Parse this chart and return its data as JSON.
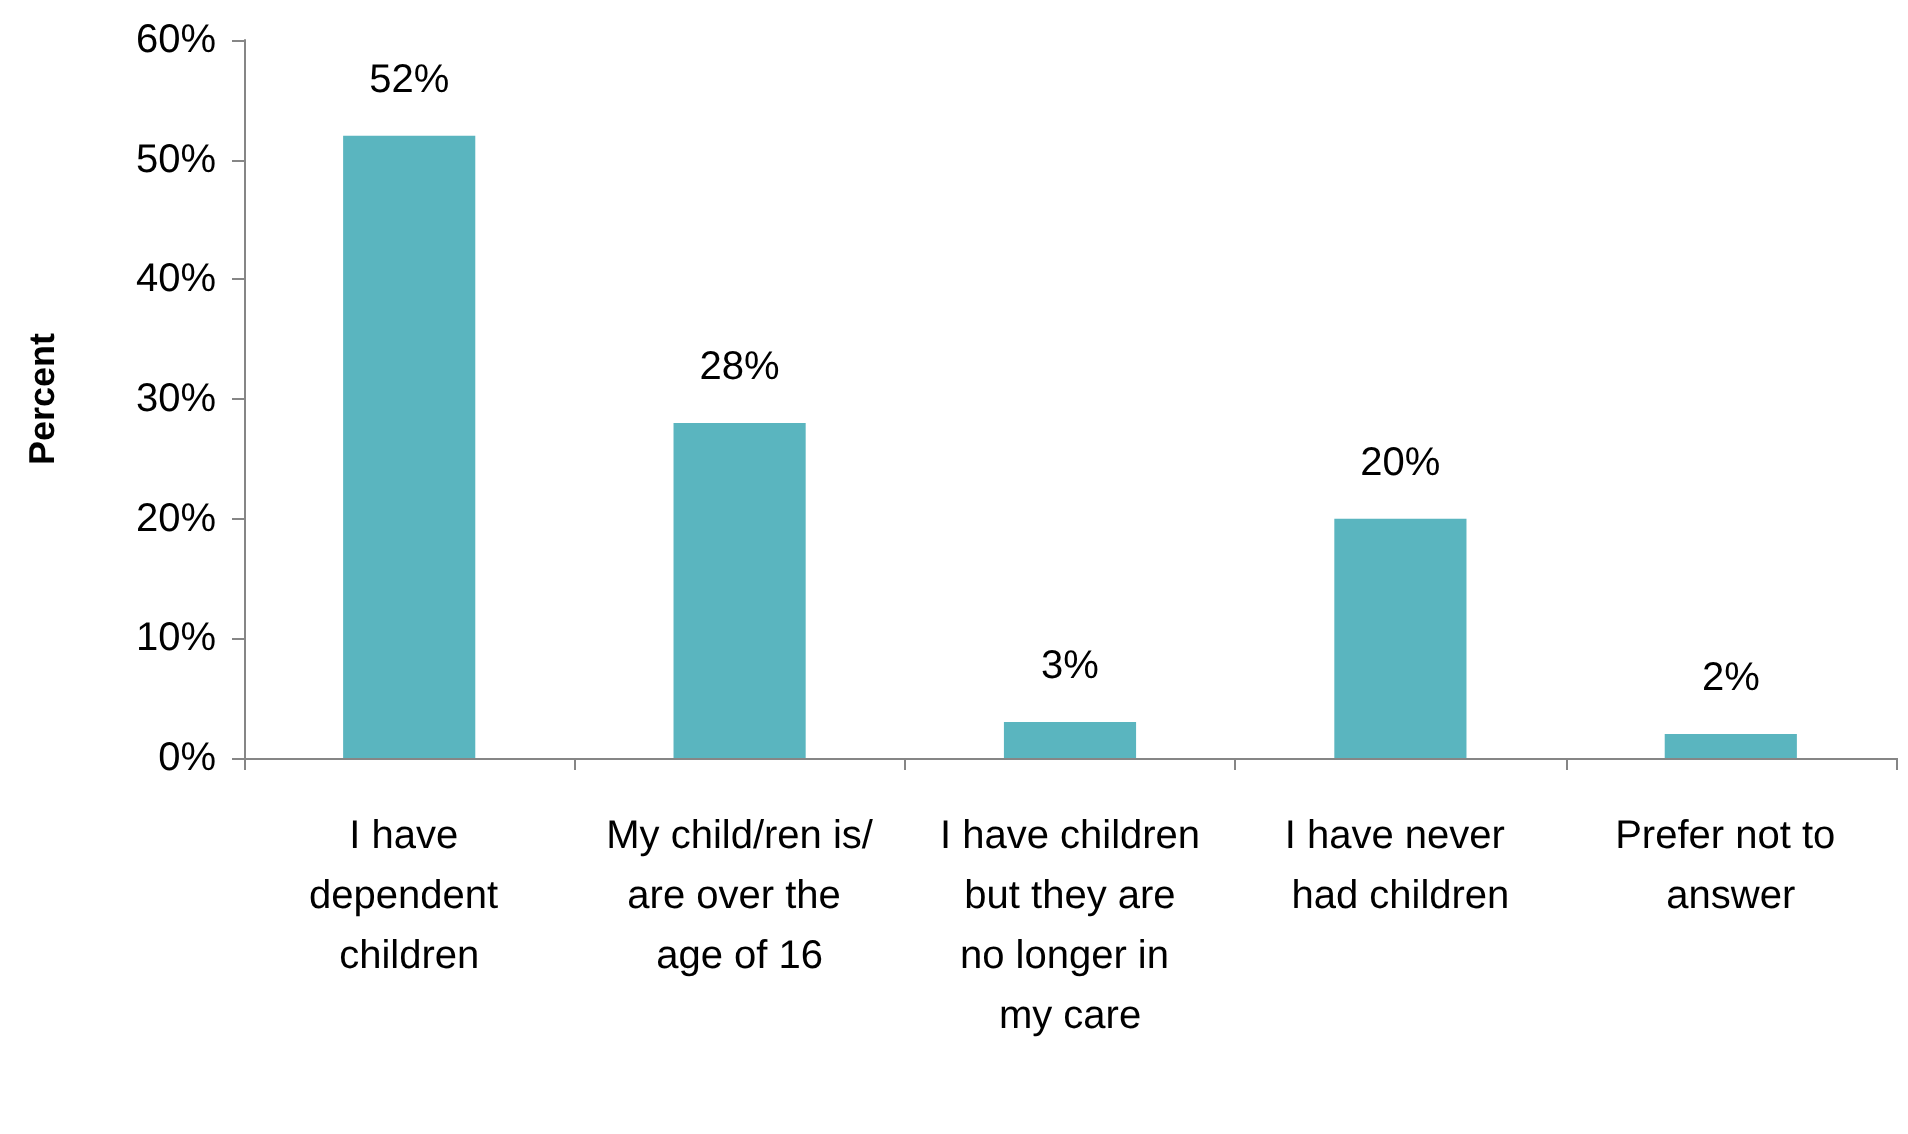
{
  "chart_data": {
    "type": "bar",
    "ylabel": "Percent",
    "categories": [
      "I have dependent children",
      "My child/ren is/are over the age of 16",
      "I have children but they are no longer in my care",
      "I have never had children",
      "Prefer not to answer"
    ],
    "values": [
      52,
      28,
      3,
      20,
      2
    ],
    "color": "#5ab5bf",
    "value_labels": [
      "52%",
      "28%",
      "3%",
      "20%",
      "2%"
    ],
    "ylim": [
      0,
      60
    ],
    "yticks": [
      {
        "value": 0,
        "label": "0%"
      },
      {
        "value": 10,
        "label": "10%"
      },
      {
        "value": 20,
        "label": "20%"
      },
      {
        "value": 30,
        "label": "30%"
      },
      {
        "value": 40,
        "label": "40%"
      },
      {
        "value": 50,
        "label": "50%"
      },
      {
        "value": 60,
        "label": "60%"
      }
    ],
    "grid": false
  }
}
